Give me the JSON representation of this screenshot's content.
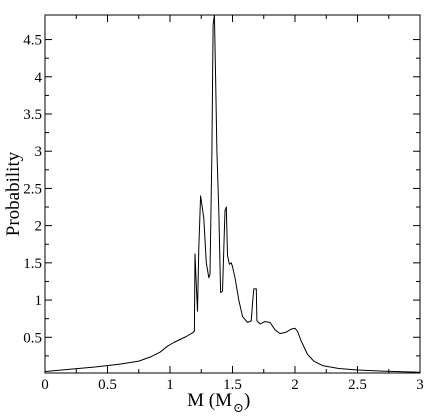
{
  "chart_data": {
    "type": "line",
    "title": "",
    "xlabel": {
      "main": "M (M",
      "subscript": "⊙",
      "close": ")"
    },
    "ylabel": "Probability",
    "xlim": [
      0,
      3
    ],
    "ylim": [
      0.02,
      4.83
    ],
    "grid": false,
    "legend": "none",
    "x_ticks": [
      {
        "value": 0,
        "label": "0"
      },
      {
        "value": 0.5,
        "label": "0.5"
      },
      {
        "value": 1,
        "label": "1"
      },
      {
        "value": 1.5,
        "label": "1.5"
      },
      {
        "value": 2,
        "label": "2"
      },
      {
        "value": 2.5,
        "label": "2.5"
      },
      {
        "value": 3,
        "label": "3"
      }
    ],
    "y_ticks": [
      {
        "value": 0.5,
        "label": "0.5"
      },
      {
        "value": 1,
        "label": "1"
      },
      {
        "value": 1.5,
        "label": "1.5"
      },
      {
        "value": 2,
        "label": "2"
      },
      {
        "value": 2.5,
        "label": "2.5"
      },
      {
        "value": 3,
        "label": "3"
      },
      {
        "value": 3.5,
        "label": "3.5"
      },
      {
        "value": 4,
        "label": "4"
      },
      {
        "value": 4.5,
        "label": "4.5"
      }
    ],
    "series": [
      {
        "color": "#000000",
        "points": [
          [
            0.0,
            0.04
          ],
          [
            0.2,
            0.07
          ],
          [
            0.4,
            0.1
          ],
          [
            0.6,
            0.14
          ],
          [
            0.75,
            0.18
          ],
          [
            0.85,
            0.24
          ],
          [
            0.92,
            0.3
          ],
          [
            0.98,
            0.38
          ],
          [
            1.03,
            0.43
          ],
          [
            1.08,
            0.47
          ],
          [
            1.13,
            0.51
          ],
          [
            1.18,
            0.56
          ],
          [
            1.195,
            0.58
          ],
          [
            1.2,
            1.62
          ],
          [
            1.21,
            1.2
          ],
          [
            1.22,
            0.85
          ],
          [
            1.23,
            1.7
          ],
          [
            1.245,
            2.4
          ],
          [
            1.27,
            2.1
          ],
          [
            1.29,
            1.5
          ],
          [
            1.31,
            1.3
          ],
          [
            1.32,
            1.35
          ],
          [
            1.335,
            3.0
          ],
          [
            1.345,
            4.7
          ],
          [
            1.355,
            4.83
          ],
          [
            1.365,
            4.0
          ],
          [
            1.375,
            3.0
          ],
          [
            1.39,
            2.2
          ],
          [
            1.405,
            1.1
          ],
          [
            1.42,
            1.12
          ],
          [
            1.44,
            2.2
          ],
          [
            1.45,
            2.25
          ],
          [
            1.46,
            1.6
          ],
          [
            1.475,
            1.48
          ],
          [
            1.49,
            1.5
          ],
          [
            1.5,
            1.45
          ],
          [
            1.52,
            1.3
          ],
          [
            1.55,
            1.0
          ],
          [
            1.58,
            0.78
          ],
          [
            1.62,
            0.7
          ],
          [
            1.65,
            0.72
          ],
          [
            1.66,
            0.95
          ],
          [
            1.67,
            1.15
          ],
          [
            1.69,
            1.15
          ],
          [
            1.695,
            0.72
          ],
          [
            1.72,
            0.68
          ],
          [
            1.76,
            0.71
          ],
          [
            1.8,
            0.7
          ],
          [
            1.84,
            0.6
          ],
          [
            1.88,
            0.55
          ],
          [
            1.93,
            0.57
          ],
          [
            1.97,
            0.61
          ],
          [
            2.0,
            0.62
          ],
          [
            2.02,
            0.58
          ],
          [
            2.05,
            0.45
          ],
          [
            2.1,
            0.27
          ],
          [
            2.15,
            0.18
          ],
          [
            2.22,
            0.12
          ],
          [
            2.35,
            0.08
          ],
          [
            2.5,
            0.06
          ],
          [
            2.7,
            0.045
          ],
          [
            2.9,
            0.035
          ],
          [
            3.0,
            0.03
          ]
        ]
      }
    ]
  }
}
